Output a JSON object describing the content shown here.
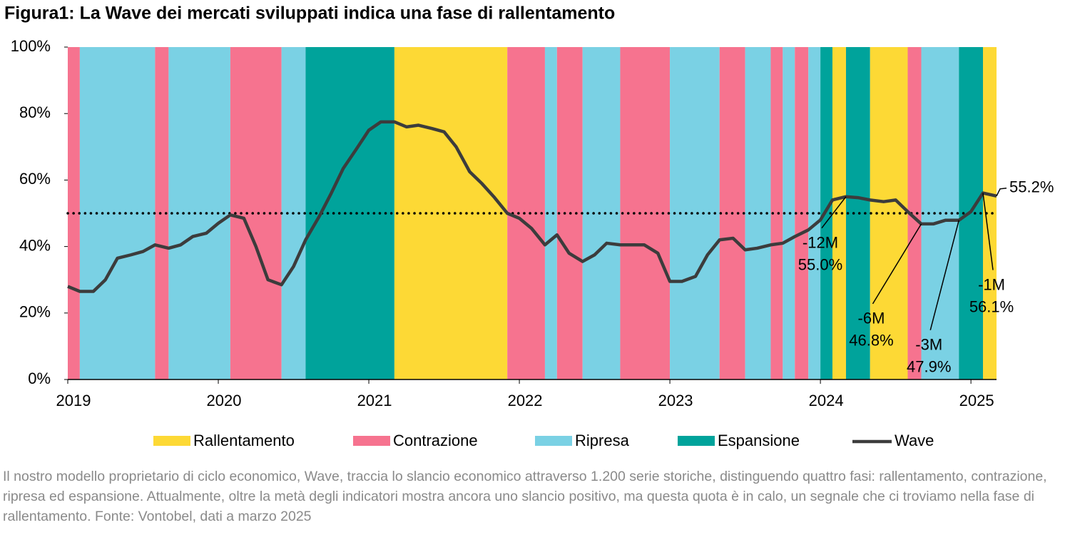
{
  "chart_data": {
    "type": "line",
    "title": "Figura1: La Wave dei mercati sviluppati indica una fase di rallentamento",
    "caption": "Il nostro modello proprietario di ciclo economico, Wave, traccia lo slancio economico attraverso 1.200 serie storiche, distinguendo quattro fasi: rallentamento, contrazione, ripresa ed espansione. Attualmente, oltre la metà degli indicatori mostra ancora uno slancio positivo, ma questa quota è in calo, un segnale che ci troviamo nella fase di rallentamento. Fonte: Vontobel, dati a marzo 2025",
    "x": [
      2019,
      2019.08,
      2019.17,
      2019.25,
      2019.33,
      2019.42,
      2019.5,
      2019.58,
      2019.67,
      2019.75,
      2019.83,
      2019.92,
      2020,
      2020.08,
      2020.17,
      2020.25,
      2020.33,
      2020.42,
      2020.5,
      2020.58,
      2020.67,
      2020.75,
      2020.83,
      2020.92,
      2021,
      2021.08,
      2021.17,
      2021.25,
      2021.33,
      2021.42,
      2021.5,
      2021.58,
      2021.67,
      2021.75,
      2021.83,
      2021.92,
      2022,
      2022.08,
      2022.17,
      2022.25,
      2022.33,
      2022.42,
      2022.5,
      2022.58,
      2022.67,
      2022.75,
      2022.83,
      2022.92,
      2023,
      2023.08,
      2023.17,
      2023.25,
      2023.33,
      2023.42,
      2023.5,
      2023.58,
      2023.67,
      2023.75,
      2023.83,
      2023.92,
      2024,
      2024.08,
      2024.17,
      2024.25,
      2024.33,
      2024.42,
      2024.5,
      2024.58,
      2024.67,
      2024.75,
      2024.83,
      2024.92,
      2025,
      2025.08,
      2025.17
    ],
    "series": [
      {
        "name": "Wave",
        "color": "#3c3c3c",
        "values": [
          28,
          26.5,
          26.5,
          30,
          36.5,
          37.5,
          38.5,
          40.5,
          39.5,
          40.5,
          43,
          44,
          47,
          49.5,
          48.5,
          40,
          30,
          28.5,
          34,
          42,
          49,
          56,
          63.5,
          69.5,
          75,
          77.5,
          77.5,
          76,
          76.5,
          75.5,
          74.5,
          70,
          62.5,
          59,
          55,
          50,
          48.5,
          45.5,
          40.5,
          43.5,
          38,
          35.5,
          37.5,
          41,
          40.5,
          40.5,
          40.5,
          38,
          29.5,
          29.5,
          31,
          37.5,
          42,
          42.5,
          39,
          39.5,
          40.5,
          41,
          43,
          45,
          48,
          54,
          55.0,
          54.7,
          54,
          53.5,
          54,
          50.5,
          46.8,
          46.8,
          47.9,
          47.9,
          50.5,
          56.1,
          55.2
        ]
      }
    ],
    "phases": [
      {
        "name": "Rallentamento",
        "color": "#fdd935"
      },
      {
        "name": "Contrazione",
        "color": "#f6738f"
      },
      {
        "name": "Ripresa",
        "color": "#7ad1e4"
      },
      {
        "name": "Espansione",
        "color": "#00a39b"
      }
    ],
    "bands": [
      {
        "phase": "Contrazione",
        "from": 2019,
        "to": 2019.08
      },
      {
        "phase": "Ripresa",
        "from": 2019.08,
        "to": 2019.58
      },
      {
        "phase": "Contrazione",
        "from": 2019.58,
        "to": 2019.67
      },
      {
        "phase": "Ripresa",
        "from": 2019.67,
        "to": 2020.08
      },
      {
        "phase": "Contrazione",
        "from": 2020.08,
        "to": 2020.42
      },
      {
        "phase": "Ripresa",
        "from": 2020.42,
        "to": 2020.58
      },
      {
        "phase": "Espansione",
        "from": 2020.58,
        "to": 2021.17
      },
      {
        "phase": "Rallentamento",
        "from": 2021.17,
        "to": 2021.92
      },
      {
        "phase": "Contrazione",
        "from": 2021.92,
        "to": 2022.17
      },
      {
        "phase": "Ripresa",
        "from": 2022.17,
        "to": 2022.25
      },
      {
        "phase": "Contrazione",
        "from": 2022.25,
        "to": 2022.42
      },
      {
        "phase": "Ripresa",
        "from": 2022.42,
        "to": 2022.67
      },
      {
        "phase": "Contrazione",
        "from": 2022.67,
        "to": 2023
      },
      {
        "phase": "Ripresa",
        "from": 2023,
        "to": 2023.33
      },
      {
        "phase": "Contrazione",
        "from": 2023.33,
        "to": 2023.5
      },
      {
        "phase": "Ripresa",
        "from": 2023.5,
        "to": 2023.67
      },
      {
        "phase": "Contrazione",
        "from": 2023.67,
        "to": 2023.75
      },
      {
        "phase": "Ripresa",
        "from": 2023.75,
        "to": 2023.83
      },
      {
        "phase": "Contrazione",
        "from": 2023.83,
        "to": 2023.92
      },
      {
        "phase": "Ripresa",
        "from": 2023.92,
        "to": 2024
      },
      {
        "phase": "Espansione",
        "from": 2024,
        "to": 2024.08
      },
      {
        "phase": "Rallentamento",
        "from": 2024.08,
        "to": 2024.17
      },
      {
        "phase": "Espansione",
        "from": 2024.17,
        "to": 2024.33
      },
      {
        "phase": "Rallentamento",
        "from": 2024.33,
        "to": 2024.58
      },
      {
        "phase": "Contrazione",
        "from": 2024.58,
        "to": 2024.67
      },
      {
        "phase": "Ripresa",
        "from": 2024.67,
        "to": 2024.92
      },
      {
        "phase": "Espansione",
        "from": 2024.92,
        "to": 2025.08
      },
      {
        "phase": "Rallentamento",
        "from": 2025.08,
        "to": 2025.17
      }
    ],
    "reference_line": 50,
    "annotations": [
      {
        "x": 2024.17,
        "label": "-12M",
        "value_label": "55.0%"
      },
      {
        "x": 2024.67,
        "label": "-6M",
        "value_label": "46.8%"
      },
      {
        "x": 2024.92,
        "label": "-3M",
        "value_label": "47.9%"
      },
      {
        "x": 2025.08,
        "label": "-1M",
        "value_label": "56.1%"
      },
      {
        "x": 2025.17,
        "value_label": "55.2%"
      }
    ],
    "xlim": [
      2019,
      2025.17
    ],
    "xticks": [
      2019,
      2020,
      2021,
      2022,
      2023,
      2024,
      2025
    ],
    "ylim": [
      0,
      100
    ],
    "yticks": [
      {
        "value": 0,
        "label": "0%"
      },
      {
        "value": 20,
        "label": "20%"
      },
      {
        "value": 40,
        "label": "40%"
      },
      {
        "value": 60,
        "label": "60%"
      },
      {
        "value": 80,
        "label": "80%"
      },
      {
        "value": 100,
        "label": "100%"
      }
    ]
  }
}
